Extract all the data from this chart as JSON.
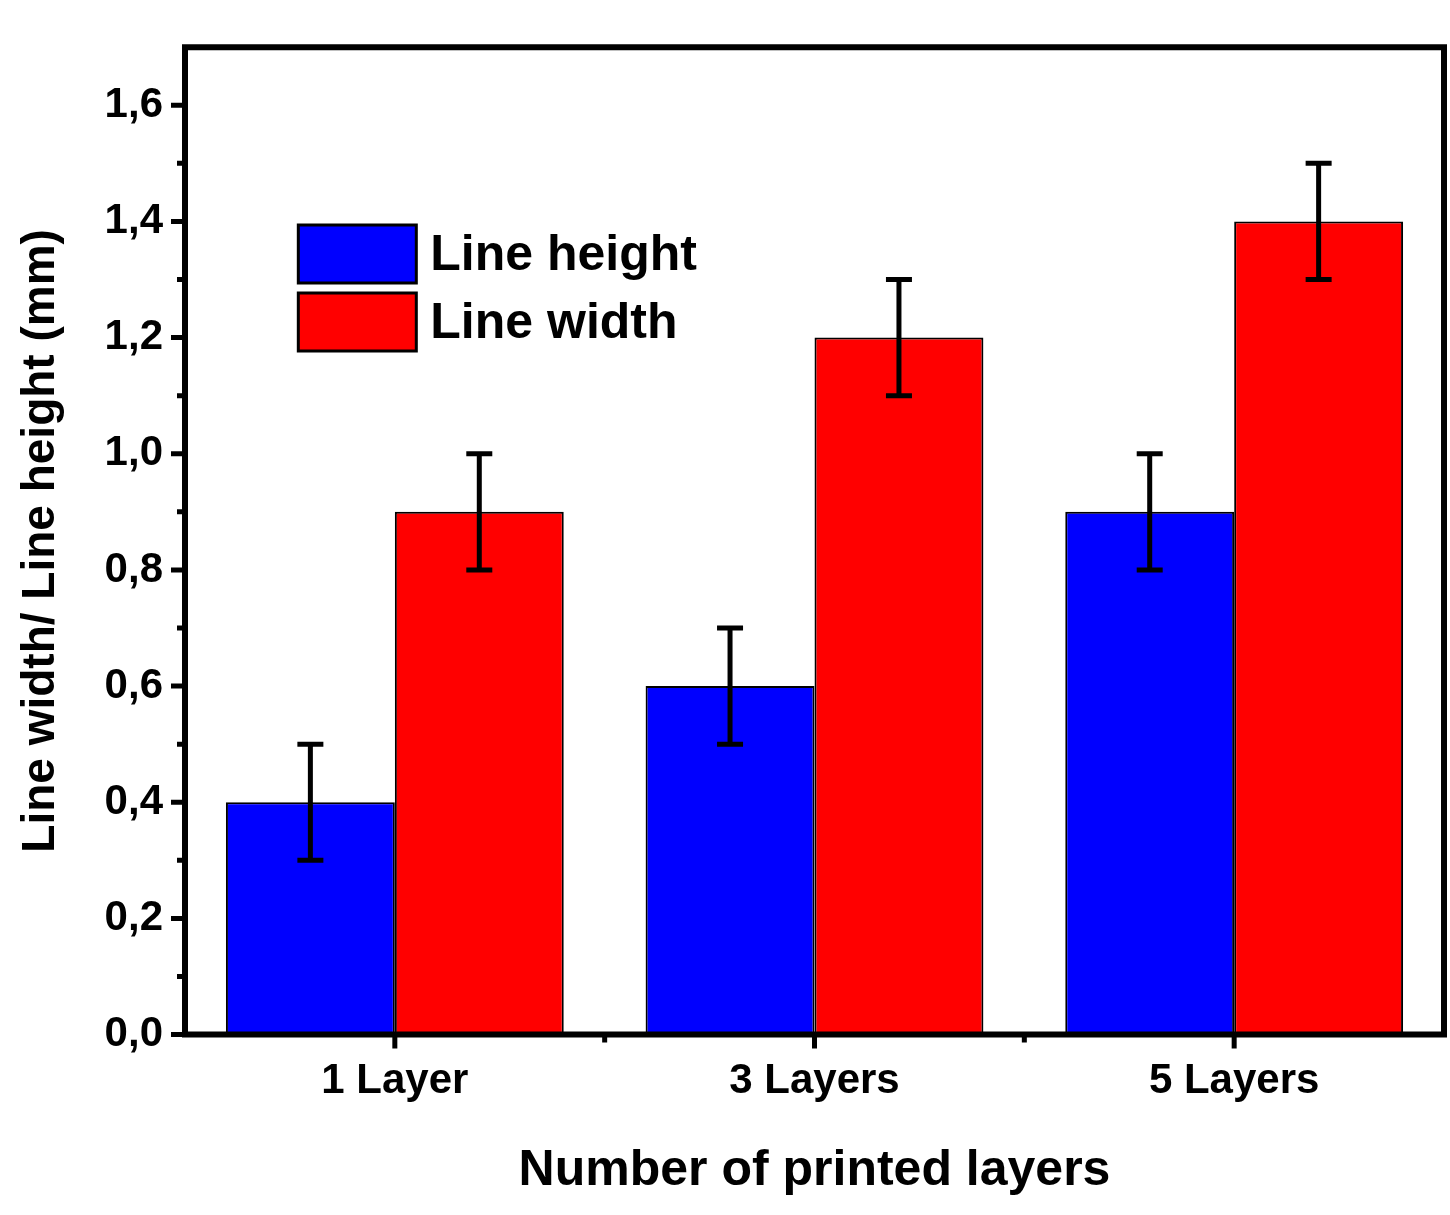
{
  "chart_data": {
    "type": "bar",
    "xlabel": "Number of printed layers",
    "ylabel": "Line width/ Line height (mm)",
    "categories": [
      "1 Layer",
      "3 Layers",
      "5 Layers"
    ],
    "series": [
      {
        "name": "Line height",
        "color": "#0000ff",
        "values": [
          0.4,
          0.6,
          0.9
        ],
        "errors": [
          0.1,
          0.1,
          0.1
        ]
      },
      {
        "name": "Line width",
        "color": "#ff0000",
        "values": [
          0.9,
          1.2,
          1.4
        ],
        "errors": [
          0.1,
          0.1,
          0.1
        ]
      }
    ],
    "ylim": [
      0,
      1.7
    ],
    "yticks": [
      {
        "value": 0,
        "label": "0,0"
      },
      {
        "value": 0.2,
        "label": "0,2"
      },
      {
        "value": 0.4,
        "label": "0,4"
      },
      {
        "value": 0.6,
        "label": "0,6"
      },
      {
        "value": 0.8,
        "label": "0,8"
      },
      {
        "value": 1.0,
        "label": "1,0"
      },
      {
        "value": 1.2,
        "label": "1,2"
      },
      {
        "value": 1.4,
        "label": "1,4"
      },
      {
        "value": 1.6,
        "label": "1,6"
      }
    ],
    "grid": false,
    "legend": "top left"
  }
}
